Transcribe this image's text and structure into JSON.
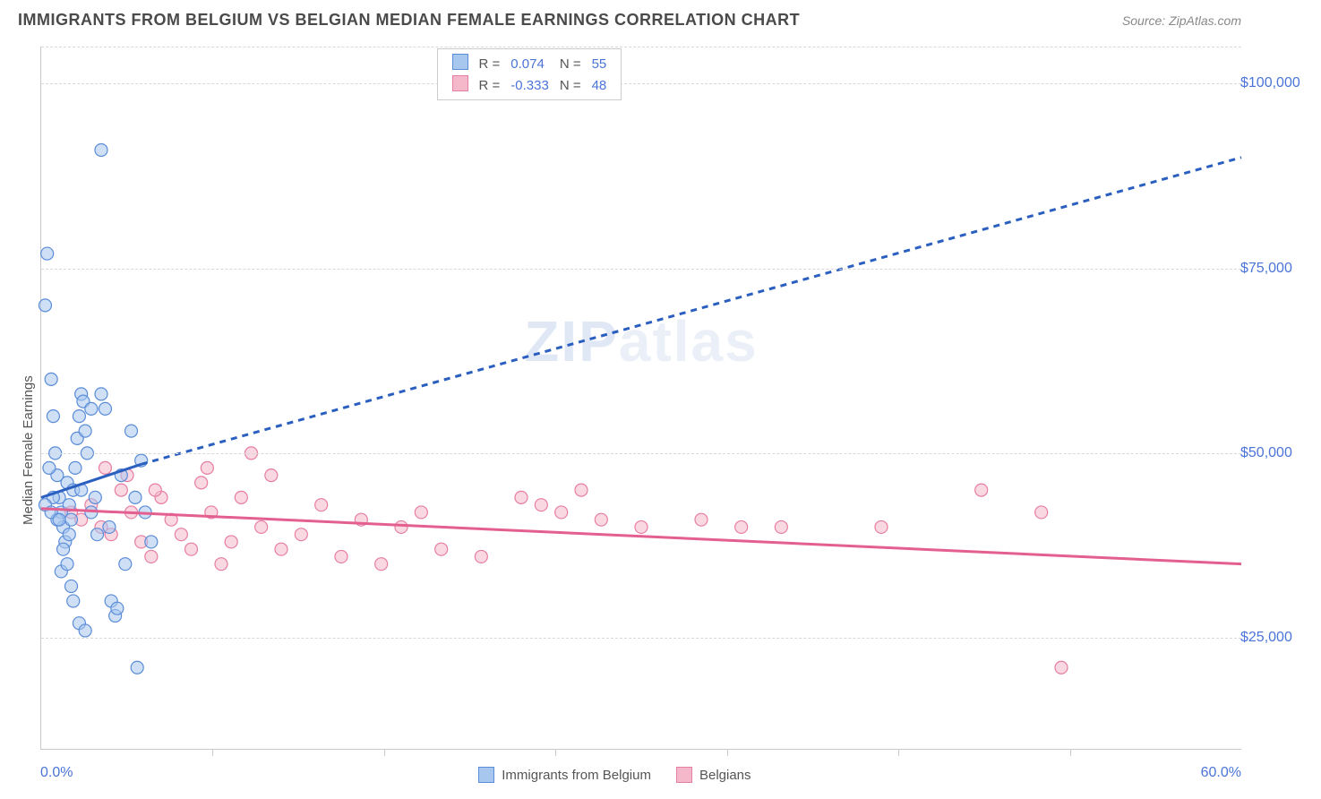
{
  "title": "IMMIGRANTS FROM BELGIUM VS BELGIAN MEDIAN FEMALE EARNINGS CORRELATION CHART",
  "source_label": "Source: ZipAtlas.com",
  "ylabel": "Median Female Earnings",
  "watermark_a": "ZIP",
  "watermark_b": "atlas",
  "chart": {
    "type": "scatter",
    "xlim": [
      0,
      60
    ],
    "ylim": [
      10000,
      105000
    ],
    "x_tick_count": 7,
    "y_ticks": [
      25000,
      50000,
      75000,
      100000
    ],
    "y_tick_labels": [
      "$25,000",
      "$50,000",
      "$75,000",
      "$100,000"
    ],
    "x_min_label": "0.0%",
    "x_max_label": "60.0%",
    "grid_color": "#d8d8d8",
    "axis_color": "#c8c8c8",
    "background_color": "#ffffff",
    "tick_label_color": "#4a74d8",
    "ylabel_color": "#555555",
    "marker_radius": 7,
    "marker_opacity": 0.55,
    "trend_line_width": 3,
    "dash_pattern": "7,6"
  },
  "series": {
    "blue": {
      "label": "Immigrants from Belgium",
      "fill": "#a8c7ef",
      "stroke": "#5a8cd8",
      "line_color": "#2a5fbf",
      "R": "0.074",
      "N": "55",
      "trend_solid": {
        "x1": 0,
        "y1": 44000,
        "x2": 5,
        "y2": 48500
      },
      "trend_dash": {
        "x1": 5,
        "y1": 48500,
        "x2": 60,
        "y2": 90000
      },
      "points": [
        [
          0.2,
          70000
        ],
        [
          0.3,
          77000
        ],
        [
          0.5,
          60000
        ],
        [
          0.6,
          55000
        ],
        [
          0.7,
          50000
        ],
        [
          0.8,
          47000
        ],
        [
          0.9,
          44000
        ],
        [
          1.0,
          42000
        ],
        [
          1.1,
          40000
        ],
        [
          1.2,
          38000
        ],
        [
          1.3,
          46000
        ],
        [
          1.4,
          43000
        ],
        [
          1.5,
          41000
        ],
        [
          1.6,
          45000
        ],
        [
          1.7,
          48000
        ],
        [
          1.8,
          52000
        ],
        [
          1.9,
          55000
        ],
        [
          2.0,
          58000
        ],
        [
          2.1,
          57000
        ],
        [
          2.2,
          53000
        ],
        [
          2.3,
          50000
        ],
        [
          2.5,
          56000
        ],
        [
          2.7,
          44000
        ],
        [
          2.8,
          39000
        ],
        [
          3.0,
          58000
        ],
        [
          3.2,
          56000
        ],
        [
          3.4,
          40000
        ],
        [
          3.5,
          30000
        ],
        [
          3.7,
          28000
        ],
        [
          4.0,
          47000
        ],
        [
          4.2,
          35000
        ],
        [
          4.5,
          53000
        ],
        [
          4.7,
          44000
        ],
        [
          5.0,
          49000
        ],
        [
          5.2,
          42000
        ],
        [
          5.5,
          38000
        ],
        [
          1.0,
          34000
        ],
        [
          1.5,
          32000
        ],
        [
          2.0,
          45000
        ],
        [
          2.5,
          42000
        ],
        [
          0.4,
          48000
        ],
        [
          0.6,
          44000
        ],
        [
          0.8,
          41000
        ],
        [
          1.1,
          37000
        ],
        [
          1.3,
          35000
        ],
        [
          1.6,
          30000
        ],
        [
          1.9,
          27000
        ],
        [
          2.2,
          26000
        ],
        [
          3.0,
          91000
        ],
        [
          0.2,
          43000
        ],
        [
          0.5,
          42000
        ],
        [
          0.9,
          41000
        ],
        [
          1.4,
          39000
        ],
        [
          4.8,
          21000
        ],
        [
          3.8,
          29000
        ]
      ]
    },
    "pink": {
      "label": "Belgians",
      "fill": "#f5b8cb",
      "stroke": "#e67da2",
      "line_color": "#e35f8f",
      "R": "-0.333",
      "N": "48",
      "trend_solid": {
        "x1": 0,
        "y1": 42500,
        "x2": 60,
        "y2": 35000
      },
      "points": [
        [
          1.5,
          42000
        ],
        [
          2.0,
          41000
        ],
        [
          2.5,
          43000
        ],
        [
          3.0,
          40000
        ],
        [
          3.5,
          39000
        ],
        [
          4.0,
          45000
        ],
        [
          4.5,
          42000
        ],
        [
          5.0,
          38000
        ],
        [
          5.5,
          36000
        ],
        [
          6.0,
          44000
        ],
        [
          6.5,
          41000
        ],
        [
          7.0,
          39000
        ],
        [
          7.5,
          37000
        ],
        [
          8.0,
          46000
        ],
        [
          8.5,
          42000
        ],
        [
          9.0,
          35000
        ],
        [
          9.5,
          38000
        ],
        [
          10.0,
          44000
        ],
        [
          10.5,
          50000
        ],
        [
          11.0,
          40000
        ],
        [
          12.0,
          37000
        ],
        [
          13.0,
          39000
        ],
        [
          14.0,
          43000
        ],
        [
          15.0,
          36000
        ],
        [
          16.0,
          41000
        ],
        [
          17.0,
          35000
        ],
        [
          18.0,
          40000
        ],
        [
          19.0,
          42000
        ],
        [
          20.0,
          37000
        ],
        [
          22.0,
          36000
        ],
        [
          24.0,
          44000
        ],
        [
          25.0,
          43000
        ],
        [
          26.0,
          42000
        ],
        [
          27.0,
          45000
        ],
        [
          28.0,
          41000
        ],
        [
          30.0,
          40000
        ],
        [
          33.0,
          41000
        ],
        [
          35.0,
          40000
        ],
        [
          37.0,
          40000
        ],
        [
          42.0,
          40000
        ],
        [
          47.0,
          45000
        ],
        [
          50.0,
          42000
        ],
        [
          51.0,
          21000
        ],
        [
          3.2,
          48000
        ],
        [
          4.3,
          47000
        ],
        [
          5.7,
          45000
        ],
        [
          8.3,
          48000
        ],
        [
          11.5,
          47000
        ]
      ]
    }
  },
  "legend_top": {
    "R_label": "R  =",
    "N_label": "N  ="
  }
}
